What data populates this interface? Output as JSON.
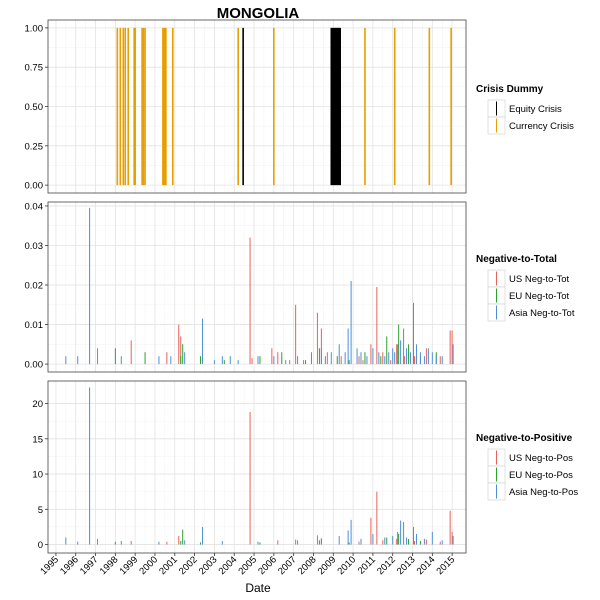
{
  "chart_data": {
    "type": "bar",
    "title": "MONGOLIA",
    "xlabel": "Date",
    "x_ticks": [
      "1995",
      "1996",
      "1997",
      "1998",
      "1999",
      "2000",
      "2001",
      "2002",
      "2003",
      "2004",
      "2005",
      "2006",
      "2007",
      "2008",
      "2009",
      "2010",
      "2011",
      "2012",
      "2013",
      "2014",
      "2015"
    ],
    "x_range": [
      1994.6,
      2015.7
    ],
    "grid": true,
    "legend_placement": "right",
    "panels": [
      {
        "id": "crisis",
        "ylim": [
          -0.05,
          1.05
        ],
        "y_ticks": [
          "0.00",
          "0.25",
          "0.50",
          "0.75",
          "1.00"
        ],
        "y_tick_values": [
          0,
          0.25,
          0.5,
          0.75,
          1.0
        ],
        "legend_title": "Crisis Dummy",
        "series": [
          {
            "name": "Equity Crisis",
            "color": "#000000",
            "x": [
              2004.45,
              2008.9,
              2008.95,
              2009.0,
              2009.05,
              2009.1,
              2009.15,
              2009.2,
              2009.25,
              2009.3,
              2009.35
            ],
            "values": [
              1,
              1,
              1,
              1,
              1,
              1,
              1,
              1,
              1,
              1,
              1
            ]
          },
          {
            "name": "Currency Crisis",
            "color": "#E69F00",
            "x": [
              1998.1,
              1998.25,
              1998.4,
              1998.5,
              1998.65,
              1998.95,
              1999.0,
              1999.35,
              1999.42,
              1999.5,
              2000.4,
              2000.45,
              2000.5,
              2000.55,
              2000.9,
              2004.2,
              2006.0,
              2010.6,
              2012.1,
              2013.85,
              2014.95
            ],
            "values": [
              1,
              1,
              1,
              1,
              1,
              1,
              1,
              1,
              1,
              1,
              1,
              1,
              1,
              1,
              1,
              1,
              1,
              1,
              1,
              1,
              1
            ]
          }
        ]
      },
      {
        "id": "neg_to_tot",
        "ylim": [
          -0.002,
          0.041
        ],
        "y_ticks": [
          "0.00",
          "0.01",
          "0.02",
          "0.03",
          "0.04"
        ],
        "y_tick_values": [
          0,
          0.01,
          0.02,
          0.03,
          0.04
        ],
        "legend_title": "Negative-to-Total",
        "series": [
          {
            "name": "US Neg-to-Tot",
            "color": "#E8625A",
            "x": [
              1997.1,
              1998.8,
              2000.6,
              2001.2,
              2001.3,
              2004.8,
              2004.9,
              2005.9,
              2006.2,
              2006.8,
              2007.1,
              2007.5,
              2007.9,
              2008.2,
              2008.4,
              2008.7,
              2009.4,
              2010.3,
              2010.5,
              2010.9,
              2011.2,
              2011.5,
              2011.9,
              2012.2,
              2012.6,
              2013.1,
              2013.7,
              2014.4,
              2014.9,
              2015.0
            ],
            "values": [
              0.004,
              0.006,
              0.003,
              0.01,
              0.007,
              0.032,
              0.0015,
              0.004,
              0.003,
              0.001,
              0.015,
              0.001,
              0.002,
              0.013,
              0.009,
              0.003,
              0.002,
              0.002,
              0.001,
              0.005,
              0.0195,
              0.003,
              0.001,
              0.005,
              0.002,
              0.002,
              0.004,
              0.002,
              0.0085,
              0.0085
            ]
          },
          {
            "name": "EU Neg-to-Tot",
            "color": "#2CA02C",
            "x": [
              1998.0,
              1999.5,
              2001.3,
              2001.4,
              2002.3,
              2003.5,
              2005.3,
              2006.4,
              2007.6,
              2008.3,
              2009.2,
              2009.8,
              2010.6,
              2011.4,
              2011.7,
              2012.3,
              2012.8,
              2013.4,
              2014.2
            ],
            "values": [
              0.004,
              0.003,
              0.002,
              0.005,
              0.002,
              0.001,
              0.002,
              0.003,
              0.001,
              0.004,
              0.002,
              0.001,
              0.003,
              0.002,
              0.007,
              0.01,
              0.005,
              0.002,
              0.003
            ]
          },
          {
            "name": "Asia Neg-to-Tot",
            "color": "#4C8FD6",
            "x": [
              1995.5,
              1996.1,
              1996.7,
              1998.3,
              2000.2,
              2000.8,
              2001.5,
              2002.4,
              2003.0,
              2003.4,
              2003.8,
              2004.2,
              2005.2,
              2006.0,
              2006.6,
              2007.2,
              2007.9,
              2008.4,
              2008.6,
              2008.9,
              2009.3,
              2009.6,
              2009.75,
              2009.9,
              2010.2,
              2010.4,
              2010.7,
              2011.0,
              2011.3,
              2011.6,
              2011.8,
              2012.0,
              2012.1,
              2012.25,
              2012.4,
              2012.55,
              2012.7,
              2012.9,
              2013.05,
              2013.2,
              2013.4,
              2013.6,
              2013.8,
              2014.0,
              2014.2,
              2014.5,
              2015.05
            ],
            "values": [
              0.002,
              0.002,
              0.0395,
              0.002,
              0.002,
              0.002,
              0.003,
              0.0115,
              0.001,
              0.002,
              0.002,
              0.001,
              0.002,
              0.002,
              0.001,
              0.002,
              0.003,
              0.004,
              0.002,
              0.003,
              0.005,
              0.003,
              0.009,
              0.021,
              0.004,
              0.003,
              0.002,
              0.004,
              0.003,
              0.002,
              0.003,
              0.004,
              0.003,
              0.005,
              0.006,
              0.009,
              0.004,
              0.003,
              0.0155,
              0.005,
              0.003,
              0.002,
              0.004,
              0.003,
              0.002,
              0.002,
              0.005
            ]
          }
        ]
      },
      {
        "id": "neg_to_pos",
        "ylim": [
          -1.2,
          23.2
        ],
        "y_ticks": [
          "0",
          "5",
          "10",
          "15",
          "20"
        ],
        "y_tick_values": [
          0,
          5,
          10,
          15,
          20
        ],
        "legend_title": "Negative-to-Positive",
        "series": [
          {
            "name": "US Neg-to-Pos",
            "color": "#E8625A",
            "x": [
              1997.1,
              1998.8,
              2000.6,
              2001.2,
              2004.8,
              2006.2,
              2007.1,
              2008.2,
              2008.4,
              2010.3,
              2010.9,
              2011.2,
              2011.5,
              2012.2,
              2013.1,
              2013.7,
              2014.4,
              2014.9,
              2015.0
            ],
            "values": [
              0.8,
              0.5,
              0.4,
              1.2,
              18.8,
              0.6,
              0.7,
              1.3,
              0.9,
              0.4,
              3.8,
              7.5,
              0.6,
              0.8,
              0.5,
              0.7,
              0.4,
              4.8,
              1.8
            ]
          },
          {
            "name": "EU Neg-to-Pos",
            "color": "#2CA02C",
            "x": [
              1998.0,
              2001.3,
              2001.4,
              2002.3,
              2005.3,
              2008.3,
              2009.8,
              2011.7,
              2012.3,
              2012.8,
              2013.4
            ],
            "values": [
              0.4,
              0.5,
              2.1,
              0.3,
              0.3,
              0.6,
              0.3,
              1.0,
              1.5,
              0.8,
              0.5
            ]
          },
          {
            "name": "Asia Neg-to-Pos",
            "color": "#4C8FD6",
            "x": [
              1995.5,
              1996.1,
              1996.7,
              1998.3,
              2000.2,
              2001.5,
              2002.4,
              2003.4,
              2005.2,
              2007.2,
              2008.4,
              2009.3,
              2009.75,
              2009.9,
              2010.4,
              2011.0,
              2011.6,
              2012.0,
              2012.25,
              2012.4,
              2012.55,
              2012.7,
              2013.05,
              2013.2,
              2013.6,
              2014.0,
              2014.5,
              2015.05
            ],
            "values": [
              1.0,
              0.4,
              22.3,
              0.5,
              0.4,
              0.6,
              2.5,
              0.5,
              0.4,
              0.6,
              0.8,
              1.2,
              2.0,
              3.5,
              0.8,
              1.5,
              1.0,
              1.2,
              1.8,
              3.4,
              3.2,
              1.0,
              2.5,
              1.5,
              0.8,
              1.8,
              0.6,
              1.2
            ]
          }
        ]
      }
    ]
  }
}
